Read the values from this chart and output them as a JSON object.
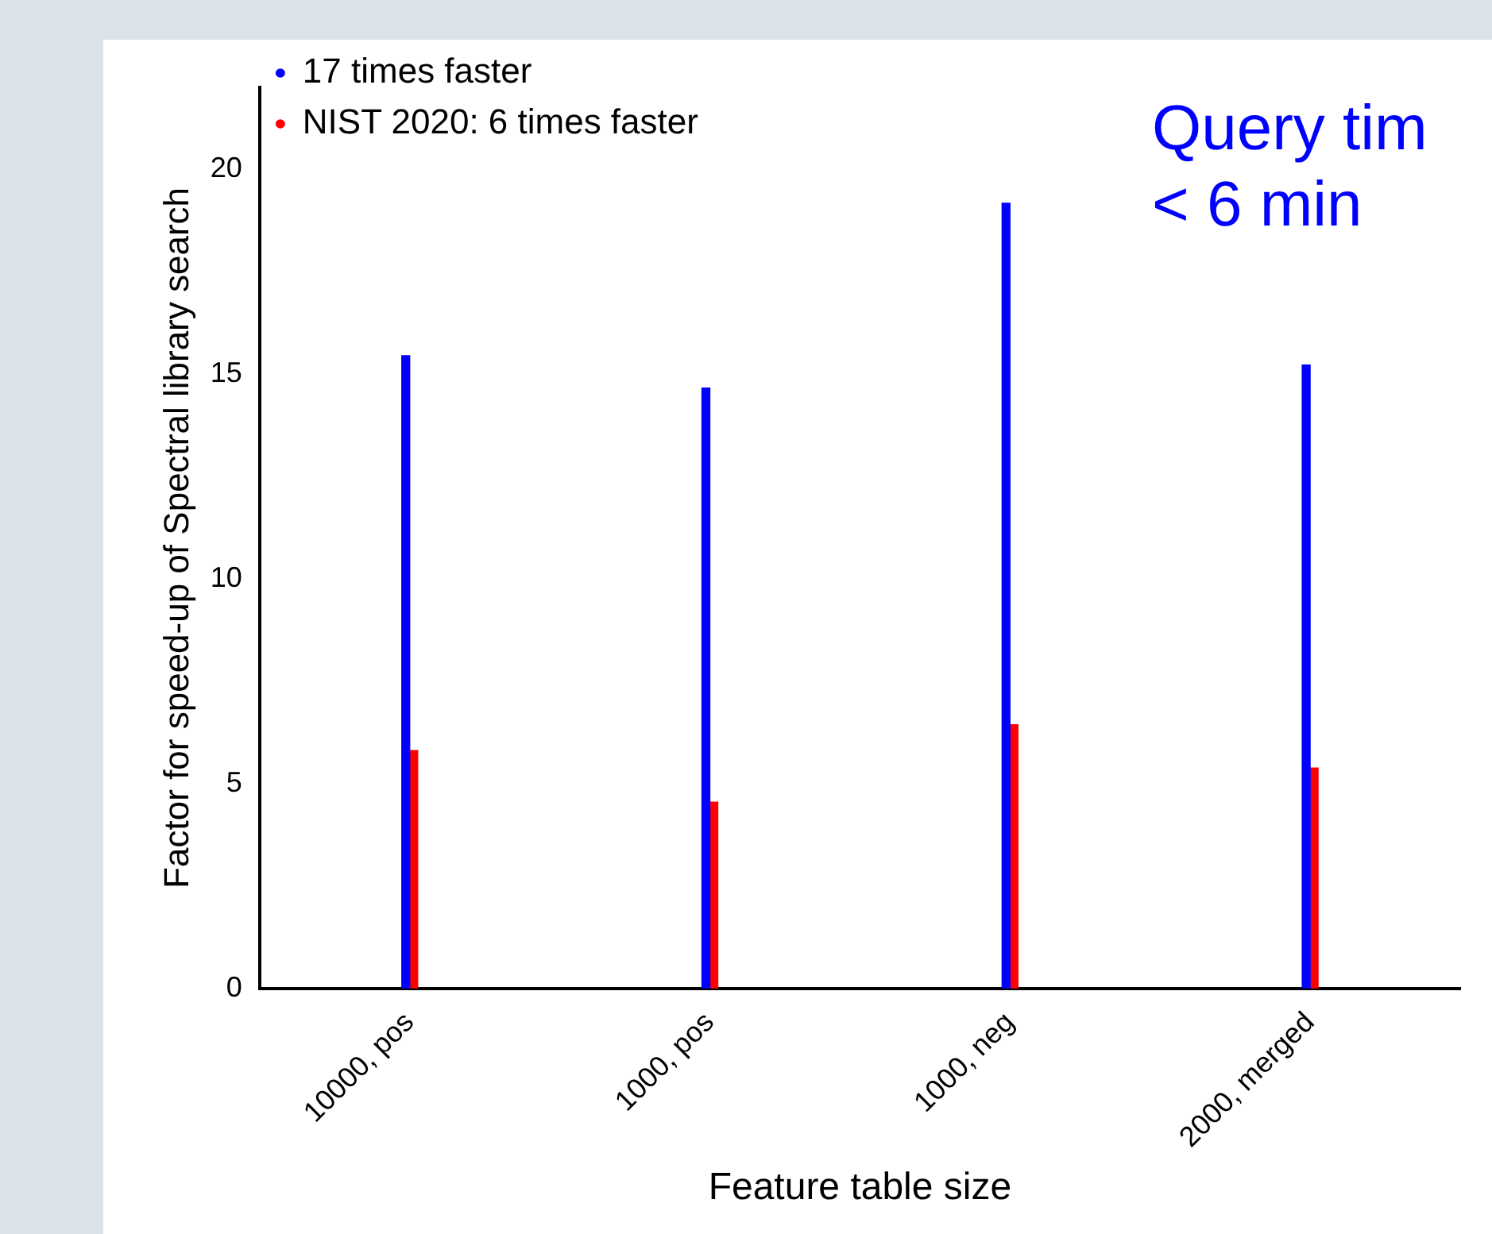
{
  "chart_data": {
    "type": "bar",
    "xlabel": "Feature table size",
    "ylabel": "Factor for speed-up of Spectral library search",
    "categories": [
      "10000, pos",
      "1000, pos",
      "1000, neg",
      "2000, merged"
    ],
    "series": [
      {
        "name": "17 times faster",
        "color": "#0000ff",
        "values": [
          15.45,
          14.66,
          19.17,
          15.22
        ]
      },
      {
        "name": "NIST 2020: 6 times faster",
        "color": "#ff0000",
        "values": [
          5.81,
          4.55,
          6.44,
          5.38
        ]
      }
    ],
    "ylim": [
      0,
      22
    ],
    "yticks": [
      0,
      5,
      10,
      15,
      20
    ],
    "grid": false,
    "legend": "top left",
    "marker": "circle",
    "annotations": [
      "Query tim",
      "< 6 min"
    ]
  }
}
